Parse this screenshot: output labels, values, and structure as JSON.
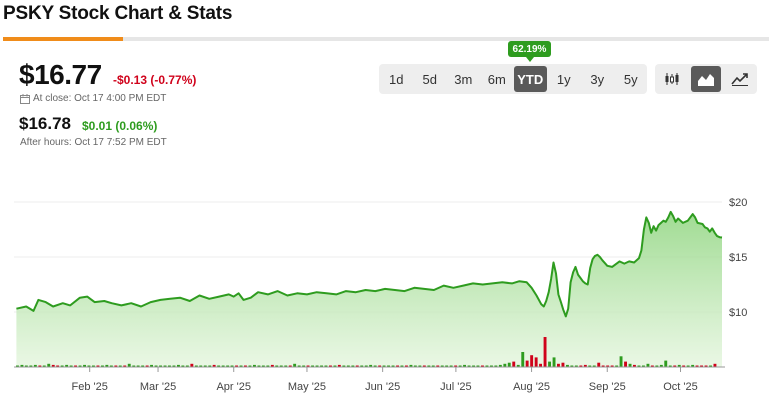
{
  "header": {
    "title": "PSKY Stock Chart & Stats"
  },
  "quote": {
    "price": "$16.77",
    "change": "-$0.13 (-0.77%)",
    "close_note": "At close: Oct 17 4:00 PM EDT",
    "after_hours_price": "$16.78",
    "after_hours_change": "$0.01 (0.06%)",
    "after_hours_note": "After hours: Oct 17 7:52 PM EDT"
  },
  "ranges": [
    "1d",
    "5d",
    "3m",
    "6m",
    "YTD",
    "1y",
    "3y",
    "5y"
  ],
  "active_range": "YTD",
  "ytd_badge": "62.19%",
  "chart_types": [
    "candlestick-icon",
    "area-chart-icon",
    "line-chart-icon"
  ],
  "colors": {
    "accent": "#f08c1a",
    "up": "#2e9c1f",
    "down": "#d0021b",
    "line": "#2e9c1f"
  },
  "chart_data": {
    "type": "area",
    "title": "",
    "xlabel": "",
    "ylabel": "",
    "ylim": [
      5,
      22
    ],
    "y_ticks": [
      "$20",
      "$15",
      "$10"
    ],
    "y_tick_values": [
      20,
      15,
      10
    ],
    "x_ticks": [
      "Feb '25",
      "Mar '25",
      "Apr '25",
      "May '25",
      "Jun '25",
      "Jul '25",
      "Aug '25",
      "Sep '25",
      "Oct '25"
    ],
    "x_tick_days": [
      31,
      59,
      90,
      120,
      151,
      181,
      212,
      243,
      273
    ],
    "x_range_days": [
      0,
      290
    ],
    "series": [
      {
        "values": [
          [
            1,
            10.3
          ],
          [
            5,
            10.5
          ],
          [
            8,
            10.1
          ],
          [
            10,
            11.1
          ],
          [
            13,
            10.9
          ],
          [
            16,
            10.5
          ],
          [
            20,
            10.8
          ],
          [
            23,
            10.6
          ],
          [
            27,
            11.3
          ],
          [
            30,
            11.4
          ],
          [
            33,
            10.9
          ],
          [
            37,
            11.0
          ],
          [
            40,
            10.8
          ],
          [
            44,
            10.6
          ],
          [
            48,
            10.8
          ],
          [
            52,
            10.5
          ],
          [
            56,
            10.9
          ],
          [
            60,
            11.1
          ],
          [
            64,
            11.2
          ],
          [
            68,
            11.3
          ],
          [
            72,
            11.0
          ],
          [
            76,
            11.5
          ],
          [
            80,
            11.2
          ],
          [
            84,
            11.4
          ],
          [
            88,
            11.6
          ],
          [
            90,
            11.4
          ],
          [
            92,
            11.7
          ],
          [
            94,
            11.1
          ],
          [
            97,
            11.3
          ],
          [
            100,
            11.8
          ],
          [
            104,
            11.6
          ],
          [
            108,
            11.9
          ],
          [
            112,
            11.5
          ],
          [
            116,
            11.7
          ],
          [
            120,
            11.6
          ],
          [
            124,
            11.8
          ],
          [
            128,
            11.7
          ],
          [
            132,
            11.6
          ],
          [
            136,
            11.9
          ],
          [
            140,
            11.8
          ],
          [
            144,
            12.0
          ],
          [
            148,
            11.9
          ],
          [
            152,
            12.1
          ],
          [
            156,
            12.0
          ],
          [
            160,
            11.9
          ],
          [
            164,
            12.2
          ],
          [
            168,
            12.1
          ],
          [
            172,
            12.0
          ],
          [
            176,
            12.4
          ],
          [
            180,
            12.2
          ],
          [
            184,
            12.4
          ],
          [
            188,
            12.6
          ],
          [
            192,
            12.5
          ],
          [
            196,
            12.6
          ],
          [
            200,
            12.7
          ],
          [
            204,
            12.6
          ],
          [
            207,
            12.8
          ],
          [
            210,
            12.7
          ],
          [
            212,
            12.2
          ],
          [
            214,
            11.5
          ],
          [
            216,
            10.7
          ],
          [
            217,
            10.5
          ],
          [
            218,
            11.0
          ],
          [
            219,
            11.8
          ],
          [
            220,
            13.0
          ],
          [
            221,
            14.5
          ],
          [
            222,
            13.5
          ],
          [
            223,
            11.6
          ],
          [
            224,
            10.9
          ],
          [
            225,
            10.2
          ],
          [
            226,
            9.6
          ],
          [
            227,
            10.3
          ],
          [
            228,
            12.7
          ],
          [
            229,
            13.6
          ],
          [
            230,
            14.1
          ],
          [
            231,
            13.4
          ],
          [
            232,
            13.1
          ],
          [
            233,
            12.8
          ],
          [
            234,
            12.6
          ],
          [
            235,
            12.5
          ],
          [
            236,
            14.0
          ],
          [
            237,
            14.8
          ],
          [
            238,
            15.1
          ],
          [
            239,
            15.2
          ],
          [
            240,
            15.0
          ],
          [
            241,
            14.7
          ],
          [
            243,
            14.2
          ],
          [
            245,
            14.1
          ],
          [
            248,
            14.6
          ],
          [
            250,
            14.4
          ],
          [
            252,
            14.6
          ],
          [
            254,
            14.5
          ],
          [
            256,
            14.9
          ],
          [
            257,
            15.6
          ],
          [
            258,
            17.5
          ],
          [
            259,
            18.6
          ],
          [
            260,
            18.1
          ],
          [
            261,
            17.2
          ],
          [
            262,
            17.8
          ],
          [
            263,
            17.4
          ],
          [
            264,
            17.9
          ],
          [
            265,
            18.1
          ],
          [
            266,
            18.3
          ],
          [
            267,
            18.2
          ],
          [
            268,
            18.6
          ],
          [
            269,
            19.1
          ],
          [
            270,
            18.7
          ],
          [
            271,
            18.2
          ],
          [
            272,
            18.5
          ],
          [
            273,
            18.3
          ],
          [
            274,
            18.1
          ],
          [
            276,
            18.3
          ],
          [
            278,
            18.9
          ],
          [
            279,
            18.6
          ],
          [
            280,
            18.1
          ],
          [
            282,
            18.0
          ],
          [
            283,
            17.7
          ],
          [
            284,
            17.6
          ],
          [
            285,
            17.3
          ],
          [
            286,
            17.6
          ],
          [
            287,
            17.2
          ],
          [
            288,
            16.9
          ],
          [
            289,
            16.8
          ],
          [
            290,
            16.77
          ]
        ]
      }
    ],
    "volume": [
      1,
      2,
      1,
      1,
      2,
      1,
      1,
      3,
      2,
      1,
      1,
      2,
      1,
      1,
      1,
      2,
      1,
      1,
      1,
      1,
      2,
      1,
      1,
      1,
      1,
      3,
      1,
      1,
      1,
      1,
      2,
      1,
      1,
      1,
      1,
      1,
      2,
      1,
      1,
      3,
      1,
      1,
      1,
      1,
      2,
      1,
      1,
      1,
      1,
      1,
      1,
      1,
      1,
      2,
      1,
      1,
      1,
      2,
      1,
      1,
      1,
      1,
      3,
      1,
      1,
      1,
      1,
      1,
      1,
      1,
      1,
      1,
      2,
      1,
      1,
      1,
      1,
      1,
      1,
      2,
      1,
      1,
      1,
      1,
      1,
      1,
      1,
      1,
      2,
      1,
      1,
      1,
      1,
      1,
      1,
      1,
      1,
      1,
      1,
      1,
      2,
      1,
      1,
      1,
      1,
      1,
      1,
      1,
      2,
      3,
      4,
      5,
      2,
      14,
      6,
      11,
      9,
      3,
      28,
      5,
      9,
      3,
      4,
      2,
      1,
      1,
      1,
      2,
      1,
      1,
      4,
      1,
      1,
      1,
      1,
      10,
      5,
      3,
      2,
      1,
      1,
      3,
      1,
      1,
      2,
      6,
      1,
      1,
      2,
      1,
      1,
      2,
      1,
      1,
      1,
      1,
      3
    ]
  }
}
